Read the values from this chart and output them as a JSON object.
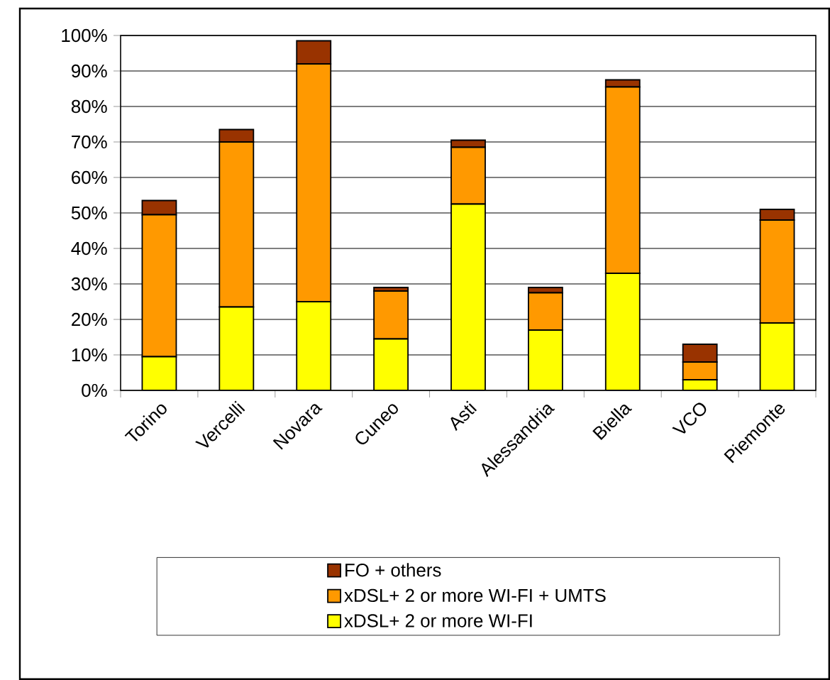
{
  "chart_data": {
    "type": "bar",
    "stacked": true,
    "categories": [
      "Torino",
      "Vercelli",
      "Novara",
      "Cuneo",
      "Asti",
      "Alessandria",
      "Biella",
      "VCO",
      "Piemonte"
    ],
    "series": [
      {
        "name": "xDSL+ 2 or more WI-FI",
        "color": "#ffff00",
        "values": [
          9.5,
          23.5,
          25,
          14.5,
          52.5,
          17,
          33,
          3,
          19
        ]
      },
      {
        "name": "xDSL+ 2 or more WI-FI + UMTS",
        "color": "#ff9900",
        "values": [
          40,
          46.5,
          67,
          13.5,
          16,
          10.5,
          52.5,
          5,
          29
        ]
      },
      {
        "name": "FO + others",
        "color": "#993300",
        "values": [
          4,
          3.5,
          6.5,
          1,
          2,
          1.5,
          2,
          5,
          3
        ]
      }
    ],
    "ylim": [
      0,
      100
    ],
    "yticks": [
      {
        "value": 0,
        "label": "0%"
      },
      {
        "value": 10,
        "label": "10%"
      },
      {
        "value": 20,
        "label": "20%"
      },
      {
        "value": 30,
        "label": "30%"
      },
      {
        "value": 40,
        "label": "40%"
      },
      {
        "value": 50,
        "label": "50%"
      },
      {
        "value": 60,
        "label": "60%"
      },
      {
        "value": 70,
        "label": "70%"
      },
      {
        "value": 80,
        "label": "80%"
      },
      {
        "value": 90,
        "label": "90%"
      },
      {
        "value": 100,
        "label": "100%"
      }
    ],
    "grid": "y",
    "legend": "bottom"
  }
}
